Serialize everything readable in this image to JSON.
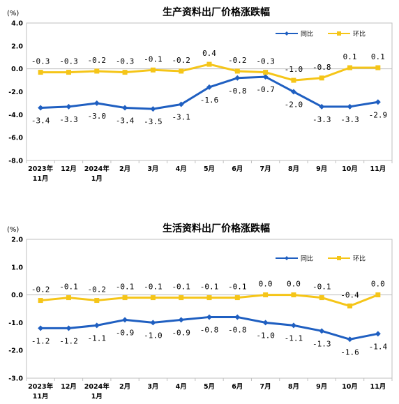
{
  "chart_data": [
    {
      "type": "line",
      "title": "生产资料出厂价格涨跌幅",
      "unit": "(%)",
      "ylim": [
        -8.0,
        4.0
      ],
      "yticks": [
        "4.0",
        "2.0",
        "0.0",
        "-2.0",
        "-4.0",
        "-6.0",
        "-8.0"
      ],
      "ytick_values": [
        4,
        2,
        0,
        -2,
        -4,
        -6,
        -8
      ],
      "categories": [
        [
          "2023年",
          "11月"
        ],
        [
          "12月",
          ""
        ],
        [
          "2024年",
          "1月"
        ],
        [
          "2月",
          ""
        ],
        [
          "3月",
          ""
        ],
        [
          "4月",
          ""
        ],
        [
          "5月",
          ""
        ],
        [
          "6月",
          ""
        ],
        [
          "7月",
          ""
        ],
        [
          "8月",
          ""
        ],
        [
          "9月",
          ""
        ],
        [
          "10月",
          ""
        ],
        [
          "11月",
          ""
        ]
      ],
      "legend_position": "top-right",
      "series": [
        {
          "name": "同比",
          "color": "#1f5fc1",
          "marker": "diamond",
          "values": [
            -3.4,
            -3.3,
            -3.0,
            -3.4,
            -3.5,
            -3.1,
            -1.6,
            -0.8,
            -0.7,
            -2.0,
            -3.3,
            -3.3,
            -2.9
          ],
          "labels": [
            "-3.4",
            "-3.3",
            "-3.0",
            "-3.4",
            "-3.5",
            "-3.1",
            "-1.6",
            "-0.8",
            "-0.7",
            "-2.0",
            "-3.3",
            "-3.3",
            "-2.9"
          ]
        },
        {
          "name": "环比",
          "color": "#f5c518",
          "marker": "square",
          "values": [
            -0.3,
            -0.3,
            -0.2,
            -0.3,
            -0.1,
            -0.2,
            0.4,
            -0.2,
            -0.3,
            -1.0,
            -0.8,
            0.1,
            0.1
          ],
          "labels": [
            "-0.3",
            "-0.3",
            "-0.2",
            "-0.3",
            "-0.1",
            "-0.2",
            "0.4",
            "-0.2",
            "-0.3",
            "-1.0",
            "-0.8",
            "0.1",
            "0.1"
          ]
        }
      ]
    },
    {
      "type": "line",
      "title": "生活资料出厂价格涨跌幅",
      "unit": "(%)",
      "ylim": [
        -3.0,
        2.0
      ],
      "yticks": [
        "2.0",
        "1.0",
        "0.0",
        "-1.0",
        "-2.0",
        "-3.0"
      ],
      "ytick_values": [
        2,
        1,
        0,
        -1,
        -2,
        -3
      ],
      "categories": [
        [
          "2023年",
          "11月"
        ],
        [
          "12月",
          ""
        ],
        [
          "2024年",
          "1月"
        ],
        [
          "2月",
          ""
        ],
        [
          "3月",
          ""
        ],
        [
          "4月",
          ""
        ],
        [
          "5月",
          ""
        ],
        [
          "6月",
          ""
        ],
        [
          "7月",
          ""
        ],
        [
          "8月",
          ""
        ],
        [
          "9月",
          ""
        ],
        [
          "10月",
          ""
        ],
        [
          "11月",
          ""
        ]
      ],
      "legend_position": "top-right",
      "series": [
        {
          "name": "同比",
          "color": "#1f5fc1",
          "marker": "diamond",
          "values": [
            -1.2,
            -1.2,
            -1.1,
            -0.9,
            -1.0,
            -0.9,
            -0.8,
            -0.8,
            -1.0,
            -1.1,
            -1.3,
            -1.6,
            -1.4
          ],
          "labels": [
            "-1.2",
            "-1.2",
            "-1.1",
            "-0.9",
            "-1.0",
            "-0.9",
            "-0.8",
            "-0.8",
            "-1.0",
            "-1.1",
            "-1.3",
            "-1.6",
            "-1.4"
          ]
        },
        {
          "name": "环比",
          "color": "#f5c518",
          "marker": "square",
          "values": [
            -0.2,
            -0.1,
            -0.2,
            -0.1,
            -0.1,
            -0.1,
            -0.1,
            -0.1,
            0.0,
            0.0,
            -0.1,
            -0.4,
            0.0
          ],
          "labels": [
            "-0.2",
            "-0.1",
            "-0.2",
            "-0.1",
            "-0.1",
            "-0.1",
            "-0.1",
            "-0.1",
            "0.0",
            "0.0",
            "-0.1",
            "-0.4",
            "0.0"
          ]
        }
      ]
    }
  ]
}
